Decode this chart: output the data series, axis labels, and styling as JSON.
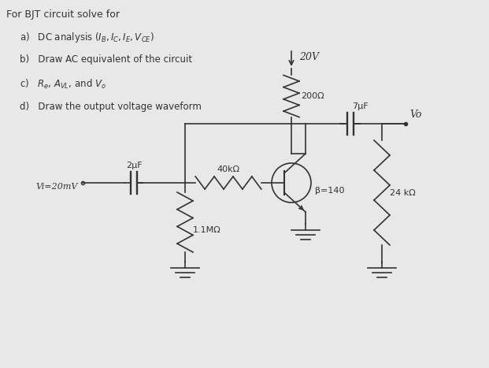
{
  "background_color": "#e8e8e8",
  "title_text": "For BJT circuit solve for",
  "items": [
    "a)   DC analysis ($I_B, I_C, I_E, V_{CE}$)",
    "b)   Draw AC equivalent of the circuit",
    "c)   $R_e$, $A_{VL}$, and $V_o$",
    "d)   Draw the output voltage waveform"
  ],
  "vcc_label": "20V",
  "rc_label": "200Ω",
  "rb_label": "40kΩ",
  "r1_label": "1.1MΩ",
  "rl_label": "24 kΩ",
  "cap1_label": "2μF",
  "cap2_label": "7μF",
  "beta_label": "β=140",
  "vi_label": "Vi=20mV",
  "vo_label": "Vo"
}
